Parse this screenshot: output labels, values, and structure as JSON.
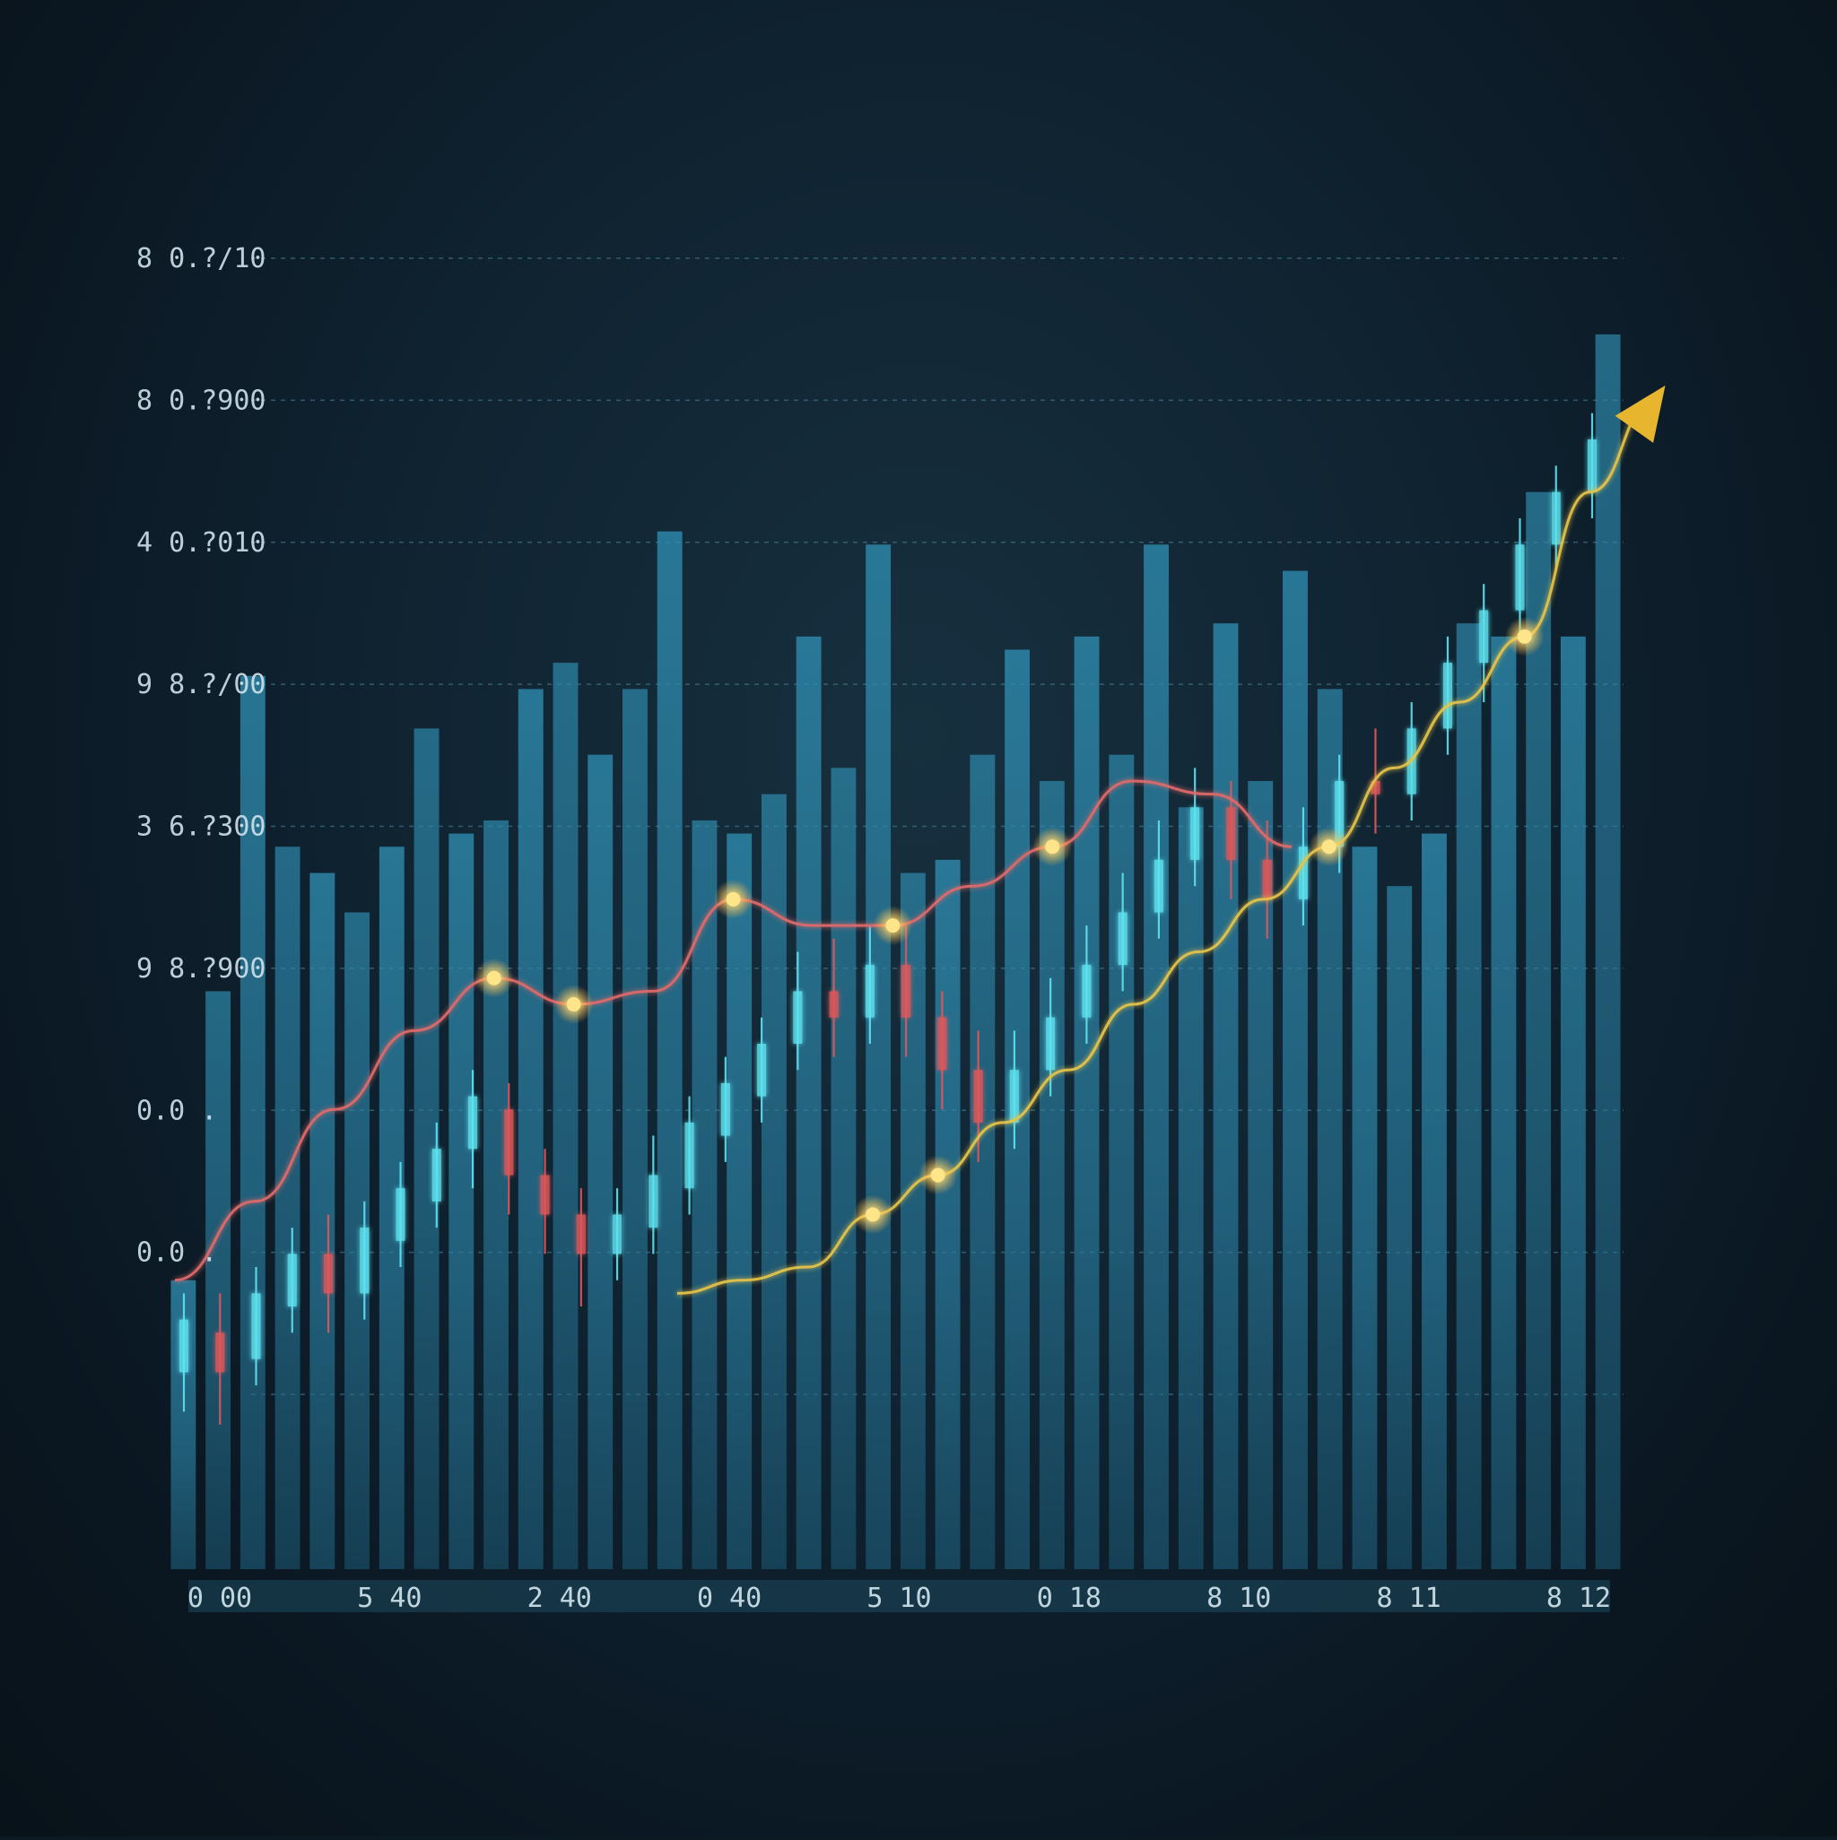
{
  "chart_data": {
    "type": "bar",
    "title": "",
    "xlabel": "",
    "ylabel": "",
    "y_tick_labels": [
      "8 0.?/10",
      "8 0.?900",
      "4 0.?010",
      "9 8.?/00",
      "3 6.?300",
      "9 8.?900",
      "0.0 .",
      "0.0 ."
    ],
    "x_tick_labels": [
      "0 00",
      "5 40",
      "2 40",
      "0 40",
      "5 10",
      "0 18",
      "8 10",
      "8 11",
      "8 12"
    ],
    "ylim": [
      0,
      100
    ],
    "grid": true,
    "legend": "none",
    "bar_values": [
      22,
      44,
      68,
      55,
      53,
      50,
      55,
      64,
      56,
      57,
      67,
      69,
      62,
      67,
      79,
      57,
      56,
      59,
      71,
      61,
      78,
      53,
      54,
      62,
      70,
      60,
      71,
      62,
      78,
      58,
      72,
      60,
      76,
      67,
      55,
      52,
      56,
      72,
      71,
      82,
      71,
      94
    ],
    "series": [
      {
        "type": "candlestick",
        "values": [
          {
            "o": 15,
            "c": 19,
            "h": 21,
            "l": 12
          },
          {
            "o": 18,
            "c": 15,
            "h": 21,
            "l": 11
          },
          {
            "o": 16,
            "c": 21,
            "h": 23,
            "l": 14
          },
          {
            "o": 20,
            "c": 24,
            "h": 26,
            "l": 18
          },
          {
            "o": 24,
            "c": 21,
            "h": 27,
            "l": 18
          },
          {
            "o": 21,
            "c": 26,
            "h": 28,
            "l": 19
          },
          {
            "o": 25,
            "c": 29,
            "h": 31,
            "l": 23
          },
          {
            "o": 28,
            "c": 32,
            "h": 34,
            "l": 26
          },
          {
            "o": 32,
            "c": 36,
            "h": 38,
            "l": 29
          },
          {
            "o": 35,
            "c": 30,
            "h": 37,
            "l": 27
          },
          {
            "o": 30,
            "c": 27,
            "h": 32,
            "l": 24
          },
          {
            "o": 27,
            "c": 24,
            "h": 29,
            "l": 20
          },
          {
            "o": 24,
            "c": 27,
            "h": 29,
            "l": 22
          },
          {
            "o": 26,
            "c": 30,
            "h": 33,
            "l": 24
          },
          {
            "o": 29,
            "c": 34,
            "h": 36,
            "l": 27
          },
          {
            "o": 33,
            "c": 37,
            "h": 39,
            "l": 31
          },
          {
            "o": 36,
            "c": 40,
            "h": 42,
            "l": 34
          },
          {
            "o": 40,
            "c": 44,
            "h": 47,
            "l": 38
          },
          {
            "o": 44,
            "c": 42,
            "h": 48,
            "l": 39
          },
          {
            "o": 42,
            "c": 46,
            "h": 49,
            "l": 40
          },
          {
            "o": 46,
            "c": 42,
            "h": 49,
            "l": 39
          },
          {
            "o": 42,
            "c": 38,
            "h": 44,
            "l": 35
          },
          {
            "o": 38,
            "c": 34,
            "h": 41,
            "l": 31
          },
          {
            "o": 34,
            "c": 38,
            "h": 41,
            "l": 32
          },
          {
            "o": 38,
            "c": 42,
            "h": 45,
            "l": 36
          },
          {
            "o": 42,
            "c": 46,
            "h": 49,
            "l": 40
          },
          {
            "o": 46,
            "c": 50,
            "h": 53,
            "l": 44
          },
          {
            "o": 50,
            "c": 54,
            "h": 57,
            "l": 48
          },
          {
            "o": 54,
            "c": 58,
            "h": 61,
            "l": 52
          },
          {
            "o": 58,
            "c": 54,
            "h": 60,
            "l": 51
          },
          {
            "o": 54,
            "c": 51,
            "h": 57,
            "l": 48
          },
          {
            "o": 51,
            "c": 55,
            "h": 58,
            "l": 49
          },
          {
            "o": 55,
            "c": 60,
            "h": 62,
            "l": 53
          },
          {
            "o": 60,
            "c": 59,
            "h": 64,
            "l": 56
          },
          {
            "o": 59,
            "c": 64,
            "h": 66,
            "l": 57
          },
          {
            "o": 64,
            "c": 69,
            "h": 71,
            "l": 62
          },
          {
            "o": 69,
            "c": 73,
            "h": 75,
            "l": 66
          },
          {
            "o": 73,
            "c": 78,
            "h": 80,
            "l": 71
          },
          {
            "o": 78,
            "c": 82,
            "h": 84,
            "l": 76
          },
          {
            "o": 82,
            "c": 86,
            "h": 88,
            "l": 80
          }
        ]
      },
      {
        "type": "line",
        "color": "#e06a6a",
        "values": [
          22,
          28,
          35,
          41,
          45,
          43,
          44,
          51,
          49,
          49,
          52,
          55,
          60,
          59,
          55
        ]
      },
      {
        "type": "line",
        "color": "#e6c44a",
        "values": [
          21,
          22,
          23,
          27,
          30,
          34,
          38,
          43,
          47,
          51,
          55,
          61,
          66,
          71,
          82,
          89
        ]
      }
    ],
    "colors": {
      "bar": "#2a7ea0",
      "bar_light": "#3a9cc0",
      "candle_up": "#5fe3f0",
      "candle_down": "#e0585a",
      "grid": "#4f8aa0",
      "tick_text": "#cfe3ec",
      "marker": "#ffe58a",
      "arrow": "#e8b52e"
    }
  }
}
